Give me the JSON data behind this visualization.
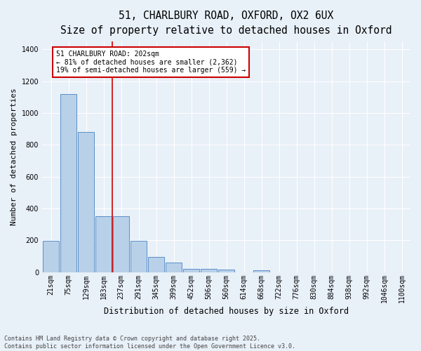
{
  "title_line1": "51, CHARLBURY ROAD, OXFORD, OX2 6UX",
  "title_line2": "Size of property relative to detached houses in Oxford",
  "xlabel": "Distribution of detached houses by size in Oxford",
  "ylabel": "Number of detached properties",
  "categories": [
    "21sqm",
    "75sqm",
    "129sqm",
    "183sqm",
    "237sqm",
    "291sqm",
    "345sqm",
    "399sqm",
    "452sqm",
    "506sqm",
    "560sqm",
    "614sqm",
    "668sqm",
    "722sqm",
    "776sqm",
    "830sqm",
    "884sqm",
    "938sqm",
    "992sqm",
    "1046sqm",
    "1100sqm"
  ],
  "values": [
    195,
    1120,
    880,
    350,
    350,
    195,
    95,
    58,
    22,
    20,
    15,
    0,
    12,
    0,
    0,
    0,
    0,
    0,
    0,
    0,
    0
  ],
  "bar_color": "#b8d0e8",
  "bar_edge_color": "#5b8fc9",
  "background_color": "#e8f0f8",
  "grid_color": "#ffffff",
  "vline_color": "#cc0000",
  "vline_x_index": 3.5,
  "annotation_text_line1": "51 CHARLBURY ROAD: 202sqm",
  "annotation_text_line2": "← 81% of detached houses are smaller (2,362)",
  "annotation_text_line3": "19% of semi-detached houses are larger (559) →",
  "annotation_fontsize": 7,
  "footer_line1": "Contains HM Land Registry data © Crown copyright and database right 2025.",
  "footer_line2": "Contains public sector information licensed under the Open Government Licence v3.0.",
  "ylim": [
    0,
    1450
  ],
  "title_fontsize": 10.5,
  "subtitle_fontsize": 9.5,
  "ylabel_fontsize": 8,
  "xlabel_fontsize": 8.5,
  "tick_fontsize": 7,
  "footer_fontsize": 6
}
